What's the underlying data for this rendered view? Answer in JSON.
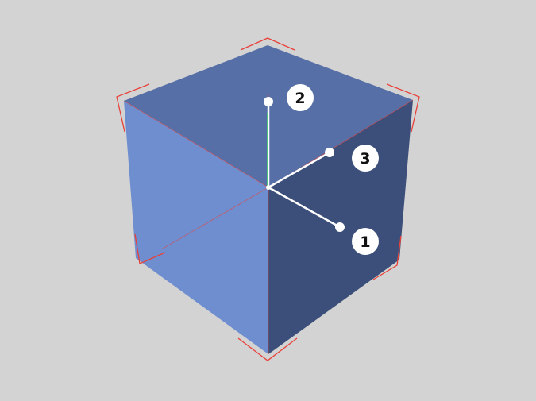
{
  "viewport": {
    "background_color": "#d3d3d3"
  },
  "cube": {
    "top_face_color": "#566fa6",
    "left_face_color": "#6f8ecf",
    "right_face_color": "#3b4f7a",
    "selection_bracket_color": "#e8413a"
  },
  "gizmo": {
    "axis_color": "#ffffff",
    "y_axis_accent_color": "#4ec27a",
    "label_circle_color": "#ffffff",
    "handles": [
      {
        "id": "axis-1",
        "label": "1"
      },
      {
        "id": "axis-2",
        "label": "2"
      },
      {
        "id": "axis-3",
        "label": "3"
      }
    ]
  }
}
